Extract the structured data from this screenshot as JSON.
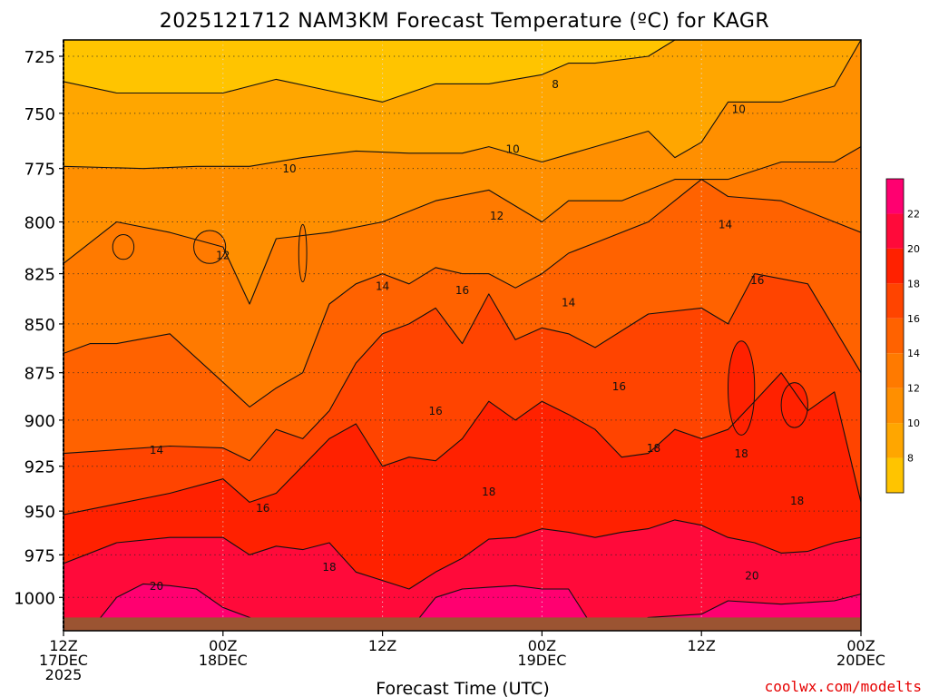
{
  "chart_data": {
    "type": "heatmap",
    "title": "2025121712 NAM3KM Forecast Temperature (ºC) for KAGR",
    "xlabel": "Forecast Time (UTC)",
    "ylabel": "",
    "watermark": "coolwx.com/modelts",
    "x_ticks": [
      {
        "hour": 0,
        "label": [
          "12Z",
          "17DEC",
          "2025"
        ]
      },
      {
        "hour": 12,
        "label": [
          "00Z",
          "18DEC"
        ]
      },
      {
        "hour": 24,
        "label": [
          "12Z"
        ]
      },
      {
        "hour": 36,
        "label": [
          "00Z",
          "19DEC"
        ]
      },
      {
        "hour": 48,
        "label": [
          "12Z"
        ]
      },
      {
        "hour": 60,
        "label": [
          "00Z",
          "20DEC"
        ]
      }
    ],
    "x_range_hours": [
      0,
      60
    ],
    "y_ticks": [
      725,
      750,
      775,
      800,
      825,
      850,
      875,
      900,
      925,
      950,
      975,
      1000
    ],
    "y_range_hpa": [
      718,
      1020
    ],
    "y_scale": "log",
    "grid": "dotted",
    "surface_hpa": 1012,
    "colors": {
      "surface": "#9b5432",
      "frame": "#000000"
    },
    "colorbar": {
      "ticks": [
        8,
        10,
        12,
        14,
        16,
        18,
        20,
        22
      ],
      "bins": [
        {
          "lo": 6,
          "hi": 8,
          "color": "#ffc400"
        },
        {
          "lo": 8,
          "hi": 10,
          "color": "#ffa600"
        },
        {
          "lo": 10,
          "hi": 12,
          "color": "#ff8f00"
        },
        {
          "lo": 12,
          "hi": 14,
          "color": "#ff7a00"
        },
        {
          "lo": 14,
          "hi": 16,
          "color": "#ff6200"
        },
        {
          "lo": 16,
          "hi": 18,
          "color": "#ff4400"
        },
        {
          "lo": 18,
          "hi": 20,
          "color": "#ff2100"
        },
        {
          "lo": 20,
          "hi": 22,
          "color": "#ff0a3a"
        },
        {
          "lo": 22,
          "hi": 24,
          "color": "#ff0070"
        }
      ]
    },
    "bands": [
      {
        "lo": 6,
        "hi": 8,
        "color": "#ffc400",
        "upper": [
          [
            0,
            718
          ],
          [
            60,
            718
          ]
        ],
        "lower": [
          [
            0,
            736
          ],
          [
            4,
            741
          ],
          [
            8,
            741
          ],
          [
            12,
            741
          ],
          [
            16,
            735
          ],
          [
            20,
            740
          ],
          [
            24,
            745
          ],
          [
            28,
            737
          ],
          [
            32,
            737
          ],
          [
            36,
            733
          ],
          [
            38,
            728
          ],
          [
            40,
            728
          ],
          [
            44,
            725
          ],
          [
            46,
            718
          ],
          [
            52,
            718
          ],
          [
            56,
            718
          ],
          [
            60,
            718
          ]
        ]
      },
      {
        "lo": 8,
        "hi": 10,
        "color": "#ffa600",
        "lower": [
          [
            0,
            774
          ],
          [
            6,
            775
          ],
          [
            10,
            774
          ],
          [
            14,
            774
          ],
          [
            18,
            770
          ],
          [
            22,
            767
          ],
          [
            26,
            768
          ],
          [
            30,
            768
          ],
          [
            32,
            765
          ],
          [
            36,
            772
          ],
          [
            40,
            765
          ],
          [
            44,
            758
          ],
          [
            46,
            770
          ],
          [
            48,
            763
          ],
          [
            50,
            745
          ],
          [
            54,
            745
          ],
          [
            58,
            738
          ],
          [
            60,
            718
          ]
        ]
      },
      {
        "lo": 10,
        "hi": 12,
        "color": "#ff8f00",
        "lower": [
          [
            0,
            820
          ],
          [
            4,
            800
          ],
          [
            8,
            805
          ],
          [
            12,
            812
          ],
          [
            14,
            840
          ],
          [
            16,
            808
          ],
          [
            20,
            805
          ],
          [
            24,
            800
          ],
          [
            28,
            790
          ],
          [
            32,
            785
          ],
          [
            36,
            800
          ],
          [
            38,
            790
          ],
          [
            42,
            790
          ],
          [
            46,
            780
          ],
          [
            50,
            780
          ],
          [
            54,
            772
          ],
          [
            58,
            772
          ],
          [
            60,
            765
          ]
        ]
      },
      {
        "lo": 12,
        "hi": 14,
        "color": "#ff7a00",
        "lower": [
          [
            0,
            865
          ],
          [
            2,
            860
          ],
          [
            4,
            860
          ],
          [
            8,
            855
          ],
          [
            12,
            880
          ],
          [
            14,
            893
          ],
          [
            16,
            883
          ],
          [
            18,
            875
          ],
          [
            20,
            840
          ],
          [
            22,
            830
          ],
          [
            24,
            825
          ],
          [
            26,
            830
          ],
          [
            28,
            822
          ],
          [
            30,
            825
          ],
          [
            32,
            825
          ],
          [
            34,
            832
          ],
          [
            36,
            825
          ],
          [
            38,
            815
          ],
          [
            40,
            810
          ],
          [
            44,
            800
          ],
          [
            48,
            780
          ],
          [
            50,
            788
          ],
          [
            54,
            790
          ],
          [
            58,
            800
          ],
          [
            60,
            805
          ]
        ]
      },
      {
        "lo": 14,
        "hi": 16,
        "color": "#ff6200",
        "lower": [
          [
            0,
            918
          ],
          [
            4,
            916
          ],
          [
            8,
            914
          ],
          [
            12,
            915
          ],
          [
            14,
            922
          ],
          [
            16,
            905
          ],
          [
            18,
            910
          ],
          [
            20,
            895
          ],
          [
            22,
            870
          ],
          [
            24,
            855
          ],
          [
            26,
            850
          ],
          [
            28,
            842
          ],
          [
            30,
            860
          ],
          [
            32,
            835
          ],
          [
            34,
            858
          ],
          [
            36,
            852
          ],
          [
            38,
            855
          ],
          [
            40,
            862
          ],
          [
            44,
            845
          ],
          [
            48,
            842
          ],
          [
            50,
            850
          ],
          [
            52,
            825
          ],
          [
            56,
            830
          ],
          [
            60,
            875
          ]
        ]
      },
      {
        "lo": 16,
        "hi": 18,
        "color": "#ff4400",
        "lower": [
          [
            0,
            952
          ],
          [
            4,
            946
          ],
          [
            8,
            940
          ],
          [
            12,
            932
          ],
          [
            14,
            945
          ],
          [
            16,
            940
          ],
          [
            20,
            910
          ],
          [
            22,
            902
          ],
          [
            24,
            925
          ],
          [
            26,
            920
          ],
          [
            28,
            922
          ],
          [
            30,
            910
          ],
          [
            32,
            890
          ],
          [
            34,
            900
          ],
          [
            36,
            890
          ],
          [
            38,
            897
          ],
          [
            40,
            905
          ],
          [
            42,
            920
          ],
          [
            44,
            918
          ],
          [
            46,
            905
          ],
          [
            48,
            910
          ],
          [
            50,
            905
          ],
          [
            52,
            890
          ],
          [
            54,
            875
          ],
          [
            56,
            895
          ],
          [
            58,
            885
          ],
          [
            60,
            945
          ]
        ]
      },
      {
        "lo": 18,
        "hi": 20,
        "color": "#ff2100",
        "lower": [
          [
            0,
            980
          ],
          [
            4,
            968
          ],
          [
            8,
            965
          ],
          [
            12,
            965
          ],
          [
            14,
            975
          ],
          [
            16,
            970
          ],
          [
            18,
            972
          ],
          [
            20,
            968
          ],
          [
            22,
            985
          ],
          [
            24,
            990
          ],
          [
            26,
            995
          ],
          [
            28,
            985
          ],
          [
            30,
            977
          ],
          [
            32,
            966
          ],
          [
            34,
            965
          ],
          [
            36,
            960
          ],
          [
            38,
            962
          ],
          [
            40,
            965
          ],
          [
            42,
            962
          ],
          [
            44,
            960
          ],
          [
            46,
            955
          ],
          [
            48,
            958
          ],
          [
            50,
            965
          ],
          [
            52,
            968
          ],
          [
            54,
            974
          ],
          [
            56,
            973
          ],
          [
            58,
            968
          ],
          [
            60,
            965
          ]
        ]
      },
      {
        "lo": 20,
        "hi": 22,
        "color": "#ff0a3a",
        "lower": [
          [
            0,
            1020
          ],
          [
            2,
            1020
          ],
          [
            4,
            1000
          ],
          [
            6,
            992
          ],
          [
            8,
            993
          ],
          [
            10,
            995
          ],
          [
            12,
            1006
          ],
          [
            14,
            1012
          ],
          [
            16,
            1020
          ],
          [
            26,
            1020
          ],
          [
            28,
            1000
          ],
          [
            30,
            995
          ],
          [
            32,
            994
          ],
          [
            34,
            993
          ],
          [
            36,
            995
          ],
          [
            38,
            995
          ],
          [
            40,
            1020
          ],
          [
            42,
            1020
          ],
          [
            44,
            1012
          ],
          [
            48,
            1010
          ],
          [
            50,
            1002
          ],
          [
            54,
            1004
          ],
          [
            58,
            1002
          ],
          [
            60,
            998
          ]
        ]
      },
      {
        "lo": 22,
        "hi": 24,
        "color": "#ff0070",
        "lower": [
          [
            0,
            1020
          ],
          [
            60,
            1020
          ]
        ]
      }
    ],
    "contour_labels": [
      {
        "x": 37.0,
        "y": 737,
        "text": "8"
      },
      {
        "x": 50.8,
        "y": 748,
        "text": "10"
      },
      {
        "x": 33.8,
        "y": 766,
        "text": "10"
      },
      {
        "x": 17.0,
        "y": 775,
        "text": "10"
      },
      {
        "x": 32.6,
        "y": 797,
        "text": "12"
      },
      {
        "x": 49.8,
        "y": 801,
        "text": "14"
      },
      {
        "x": 12.0,
        "y": 816,
        "text": "12"
      },
      {
        "x": 52.2,
        "y": 828,
        "text": "16"
      },
      {
        "x": 24.0,
        "y": 831,
        "text": "14"
      },
      {
        "x": 30.0,
        "y": 833,
        "text": "16"
      },
      {
        "x": 38.0,
        "y": 839,
        "text": "14"
      },
      {
        "x": 41.8,
        "y": 882,
        "text": "16"
      },
      {
        "x": 28.0,
        "y": 895,
        "text": "16"
      },
      {
        "x": 7.0,
        "y": 916,
        "text": "14"
      },
      {
        "x": 44.4,
        "y": 915,
        "text": "18"
      },
      {
        "x": 51.0,
        "y": 918,
        "text": "18"
      },
      {
        "x": 32.0,
        "y": 939,
        "text": "18"
      },
      {
        "x": 15.0,
        "y": 948,
        "text": "16"
      },
      {
        "x": 55.2,
        "y": 944,
        "text": "18"
      },
      {
        "x": 20.0,
        "y": 982,
        "text": "18"
      },
      {
        "x": 51.8,
        "y": 987,
        "text": "20"
      },
      {
        "x": 7.0,
        "y": 993,
        "text": "20"
      }
    ],
    "pockets": [
      {
        "x": 55.0,
        "y": 892,
        "rx": 1.0,
        "ry": 12,
        "color": "#ff2100"
      },
      {
        "x": 51.0,
        "y": 883,
        "rx": 1.0,
        "ry": 25,
        "color": "#ff2100"
      },
      {
        "x": 11.0,
        "y": 812,
        "rx": 1.2,
        "ry": 8,
        "color": "#ff7a00"
      },
      {
        "x": 4.5,
        "y": 812,
        "rx": 0.8,
        "ry": 6,
        "color": "#ff7a00"
      },
      {
        "x": 18.0,
        "y": 815,
        "rx": 0.3,
        "ry": 14,
        "color": "#ff7a00"
      }
    ]
  }
}
